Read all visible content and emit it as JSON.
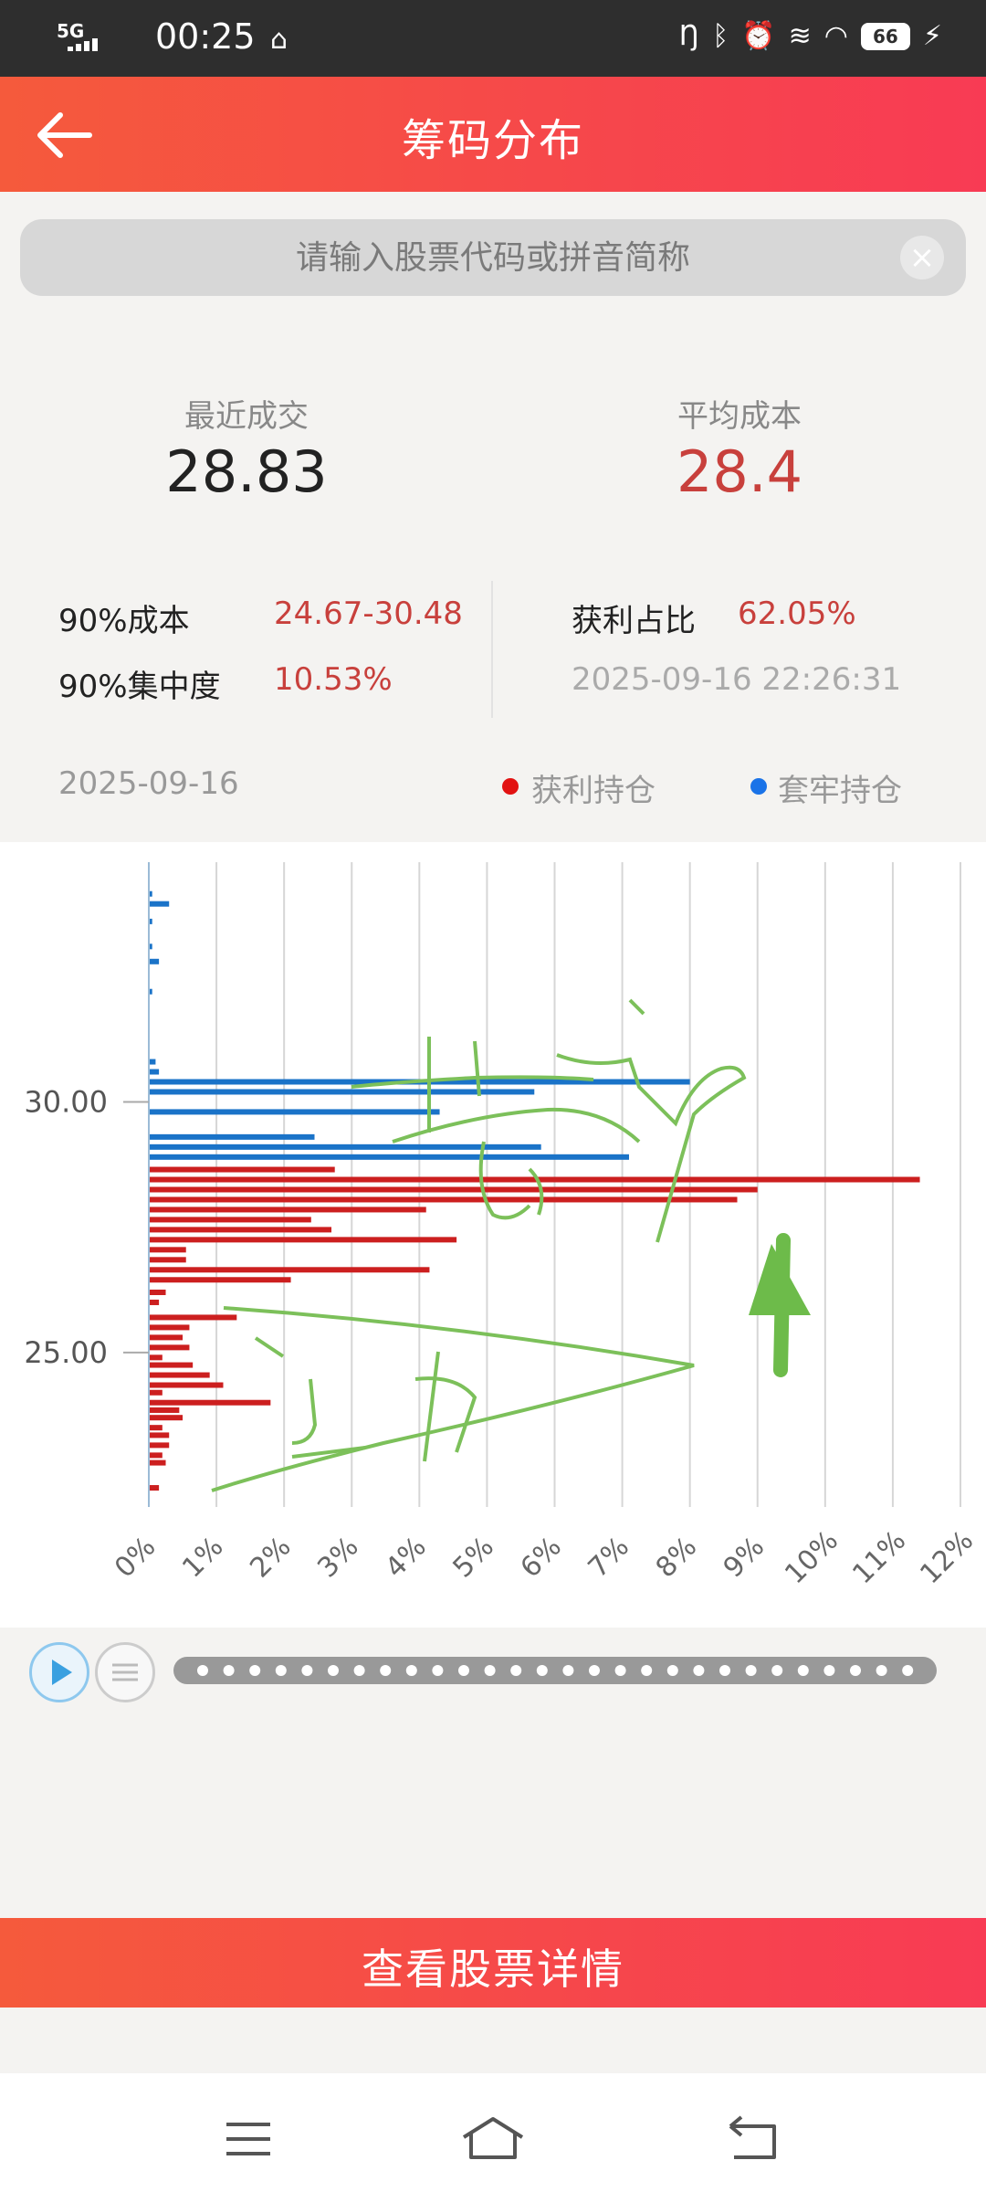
{
  "status_bar": {
    "network": "5G",
    "time": "00:25",
    "battery": "66"
  },
  "header": {
    "title": "筹码分布"
  },
  "search": {
    "placeholder": "请输入股票代码或拼音简称"
  },
  "summary": {
    "last_trade_label": "最近成交",
    "last_trade_value": "28.83",
    "avg_cost_label": "平均成本",
    "avg_cost_value": "28.4"
  },
  "details": {
    "cost90_label": "90%成本",
    "cost90_value": "24.67-30.48",
    "conc90_label": "90%集中度",
    "conc90_value": "10.53%",
    "profit_ratio_label": "获利占比",
    "profit_ratio_value": "62.05%",
    "timestamp": "2025-09-16 22:26:31"
  },
  "legend": {
    "date": "2025-09-16",
    "profit_label": "获利持仓",
    "trapped_label": "套牢持仓"
  },
  "colors": {
    "accent": "#f6484a",
    "profit": "#cc1f1f",
    "trapped": "#1a73c8",
    "value_red": "#c8403c",
    "annotation": "#7cc05a"
  },
  "chart_data": {
    "type": "bar",
    "orientation": "horizontal",
    "y_ticks": [
      "30.00",
      "25.00"
    ],
    "x_ticks": [
      "0%",
      "1%",
      "2%",
      "3%",
      "4%",
      "5%",
      "6%",
      "7%",
      "8%",
      "9%",
      "10%",
      "11%",
      "12%"
    ],
    "xlim": [
      0,
      12
    ],
    "ylim": [
      22.1,
      34.6
    ],
    "grid": "vertical",
    "series": [
      {
        "name": "套牢持仓",
        "color": "#1a73c8",
        "points": [
          [
            34.15,
            0.05
          ],
          [
            33.95,
            0.3
          ],
          [
            33.6,
            0.05
          ],
          [
            33.1,
            0.05
          ],
          [
            32.8,
            0.15
          ],
          [
            32.2,
            0.05
          ],
          [
            30.8,
            0.1
          ],
          [
            30.6,
            0.15
          ],
          [
            30.4,
            8.0
          ],
          [
            30.2,
            5.7
          ],
          [
            29.8,
            4.3
          ],
          [
            29.3,
            2.45
          ],
          [
            29.1,
            5.8
          ],
          [
            28.9,
            7.1
          ]
        ]
      },
      {
        "name": "获利持仓",
        "color": "#cc1f1f",
        "points": [
          [
            28.65,
            2.75
          ],
          [
            28.45,
            11.4
          ],
          [
            28.25,
            9.0
          ],
          [
            28.05,
            8.7
          ],
          [
            27.85,
            4.1
          ],
          [
            27.65,
            2.4
          ],
          [
            27.45,
            2.7
          ],
          [
            27.25,
            4.55
          ],
          [
            27.05,
            0.55
          ],
          [
            26.85,
            0.55
          ],
          [
            26.65,
            4.15
          ],
          [
            26.45,
            2.1
          ],
          [
            26.2,
            0.25
          ],
          [
            26.0,
            0.15
          ],
          [
            25.7,
            1.3
          ],
          [
            25.5,
            0.6
          ],
          [
            25.3,
            0.5
          ],
          [
            25.1,
            0.6
          ],
          [
            24.9,
            0.2
          ],
          [
            24.75,
            0.65
          ],
          [
            24.55,
            0.9
          ],
          [
            24.35,
            1.1
          ],
          [
            24.2,
            0.2
          ],
          [
            24.0,
            1.8
          ],
          [
            23.85,
            0.45
          ],
          [
            23.7,
            0.5
          ],
          [
            23.5,
            0.2
          ],
          [
            23.35,
            0.3
          ],
          [
            23.15,
            0.3
          ],
          [
            22.95,
            0.2
          ],
          [
            22.8,
            0.25
          ],
          [
            22.3,
            0.15
          ]
        ]
      }
    ]
  },
  "bottom_button": {
    "label": "查看股票详情"
  }
}
